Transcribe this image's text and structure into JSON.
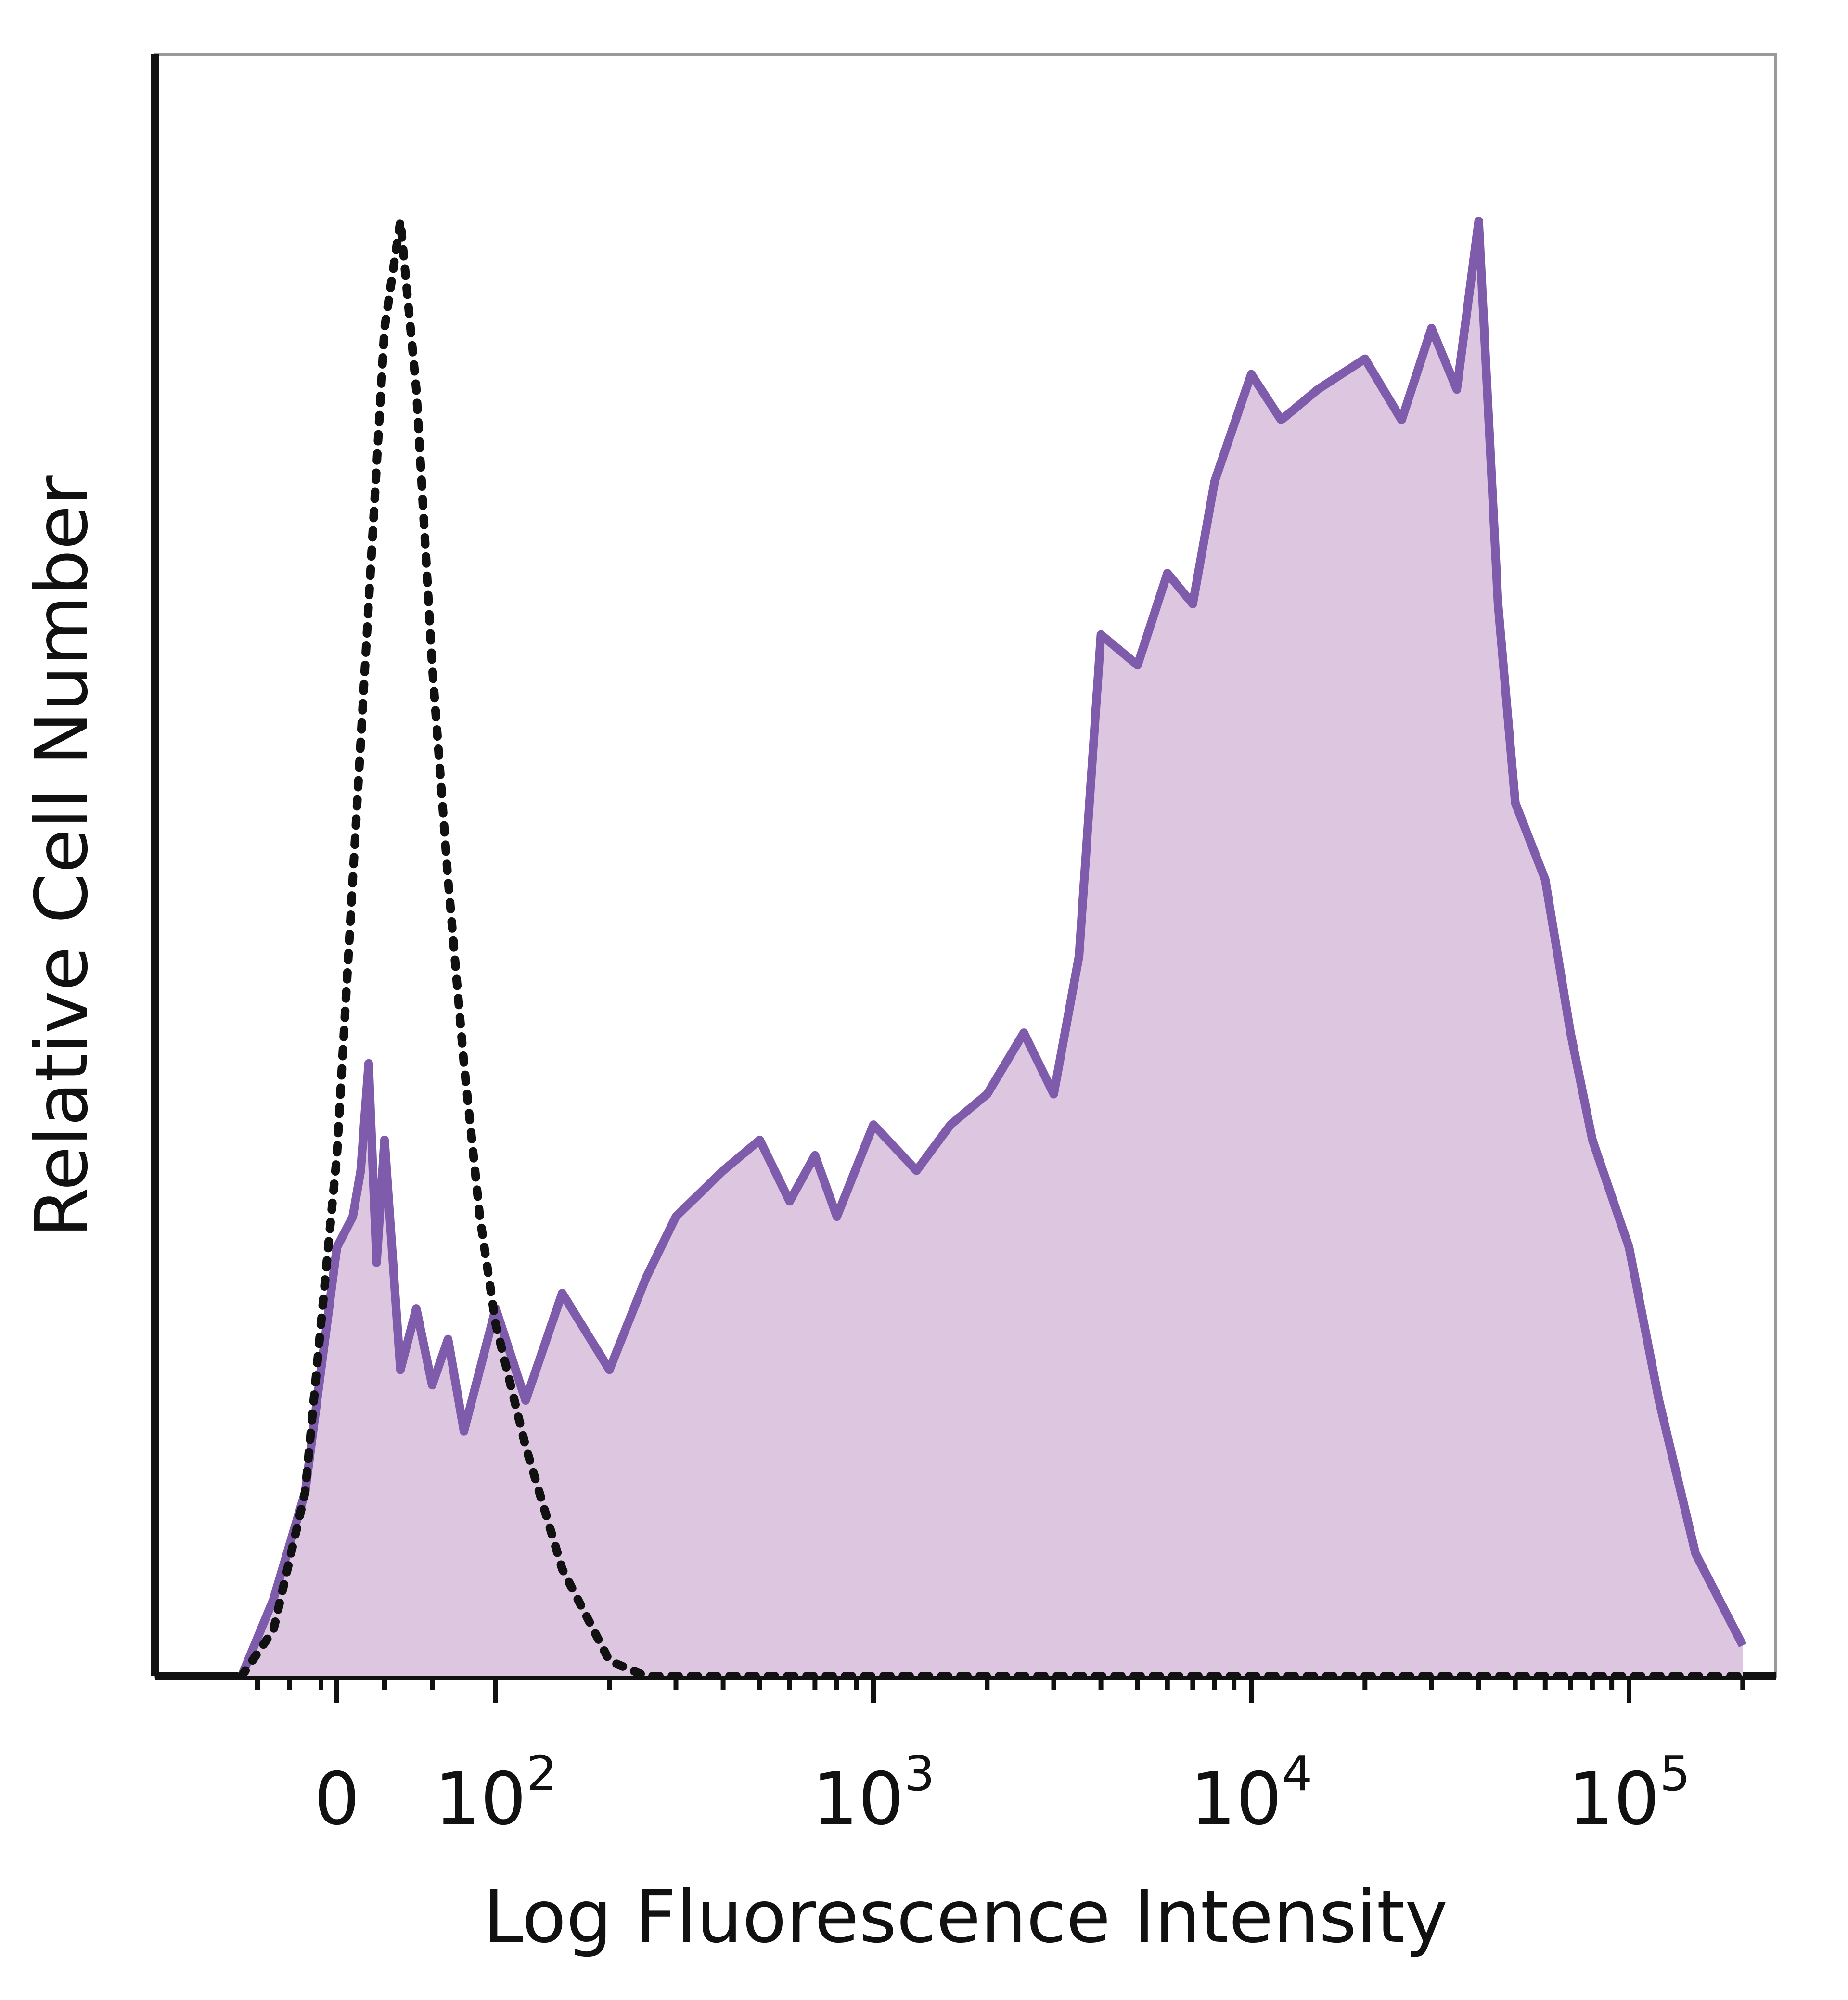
{
  "chart_data": {
    "type": "area",
    "title": "",
    "xlabel": "Log Fluorescence Intensity",
    "ylabel": "Relative Cell Number",
    "x_scale": "biexponential (log with linear region around 0)",
    "xlim": [
      -60,
      200000
    ],
    "ylim": [
      0,
      100
    ],
    "grid": false,
    "legend": "none",
    "x_tick_labels": [
      {
        "base": "0",
        "exp": ""
      },
      {
        "base": "10",
        "exp": "2"
      },
      {
        "base": "10",
        "exp": "3"
      },
      {
        "base": "10",
        "exp": "4"
      },
      {
        "base": "10",
        "exp": "5"
      }
    ],
    "series": [
      {
        "style": "dotted",
        "color": "#111111",
        "x": [
          -60,
          -40,
          -20,
          0,
          10,
          20,
          30,
          40,
          50,
          60,
          70,
          80,
          90,
          100,
          120,
          150,
          200,
          250,
          300,
          500,
          1000,
          10000,
          100000,
          200000
        ],
        "y": [
          0,
          3,
          12,
          34,
          52,
          70,
          88,
          95,
          84,
          66,
          52,
          40,
          30,
          23,
          15,
          7,
          1,
          0,
          0,
          0,
          0,
          0,
          0,
          0
        ]
      },
      {
        "style": "filled",
        "color": "#7e5bab",
        "fill": "#dcc6e0",
        "x": [
          -60,
          -40,
          -20,
          0,
          10,
          15,
          20,
          25,
          30,
          40,
          50,
          60,
          70,
          80,
          100,
          120,
          150,
          200,
          250,
          300,
          400,
          500,
          600,
          700,
          800,
          1000,
          1300,
          1600,
          2000,
          2500,
          3000,
          3500,
          4000,
          5000,
          6000,
          7000,
          8000,
          10000,
          12000,
          15000,
          20000,
          25000,
          30000,
          35000,
          40000,
          45000,
          50000,
          60000,
          70000,
          80000,
          100000,
          120000,
          150000,
          200000
        ],
        "y": [
          0,
          5,
          12,
          28,
          30,
          33,
          40,
          27,
          35,
          20,
          24,
          19,
          22,
          16,
          24,
          18,
          25,
          20,
          26,
          30,
          33,
          35,
          31,
          34,
          30,
          36,
          33,
          36,
          38,
          42,
          38,
          47,
          68,
          66,
          72,
          70,
          78,
          85,
          82,
          84,
          86,
          82,
          88,
          84,
          95,
          70,
          57,
          52,
          42,
          35,
          28,
          18,
          8,
          2
        ]
      }
    ]
  }
}
